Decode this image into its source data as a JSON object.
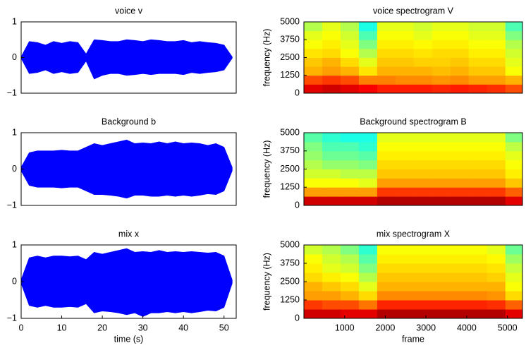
{
  "chart_data": [
    {
      "type": "waveform",
      "title": "voice v",
      "color": "#0000ff",
      "x": [
        0,
        2,
        4,
        6,
        8,
        10,
        12,
        14,
        16,
        18,
        20,
        22,
        24,
        26,
        28,
        30,
        32,
        34,
        36,
        38,
        40,
        42,
        44,
        46,
        48,
        50,
        52
      ],
      "upper": [
        0.02,
        0.45,
        0.42,
        0.35,
        0.45,
        0.4,
        0.45,
        0.42,
        0.1,
        0.5,
        0.48,
        0.45,
        0.45,
        0.5,
        0.48,
        0.45,
        0.5,
        0.48,
        0.45,
        0.45,
        0.48,
        0.42,
        0.45,
        0.42,
        0.4,
        0.35,
        0.02
      ],
      "lower": [
        -0.02,
        -0.45,
        -0.42,
        -0.35,
        -0.45,
        -0.4,
        -0.45,
        -0.42,
        -0.1,
        -0.6,
        -0.5,
        -0.45,
        -0.45,
        -0.5,
        -0.48,
        -0.45,
        -0.48,
        -0.45,
        -0.45,
        -0.45,
        -0.48,
        -0.42,
        -0.45,
        -0.42,
        -0.4,
        -0.35,
        -0.02
      ],
      "xlim": [
        0,
        53
      ],
      "ylim": [
        -1,
        1
      ],
      "yticks": [
        {
          "value": -1,
          "label": "−1"
        },
        0,
        1
      ]
    },
    {
      "type": "heatmap",
      "title": "voice spectrogram V",
      "ylabel": "frequency (Hz)",
      "colormap": "jet",
      "xbins": [
        0,
        450,
        900,
        1350,
        1800,
        2250,
        2700,
        3150,
        3600,
        4050,
        4500,
        4950,
        5370
      ],
      "ybins": [
        0,
        625,
        1250,
        1875,
        2500,
        3125,
        3750,
        4375,
        5000
      ],
      "values": [
        [
          0.9,
          0.92,
          0.9,
          0.88,
          0.85,
          0.85,
          0.85,
          0.84,
          0.85,
          0.84,
          0.83,
          0.8
        ],
        [
          0.8,
          0.82,
          0.8,
          0.75,
          0.75,
          0.74,
          0.74,
          0.73,
          0.74,
          0.72,
          0.72,
          0.7
        ],
        [
          0.7,
          0.72,
          0.7,
          0.65,
          0.7,
          0.7,
          0.7,
          0.69,
          0.7,
          0.68,
          0.68,
          0.62
        ],
        [
          0.68,
          0.7,
          0.66,
          0.6,
          0.68,
          0.68,
          0.67,
          0.67,
          0.68,
          0.66,
          0.66,
          0.6
        ],
        [
          0.65,
          0.66,
          0.62,
          0.55,
          0.66,
          0.66,
          0.65,
          0.66,
          0.66,
          0.64,
          0.64,
          0.58
        ],
        [
          0.62,
          0.64,
          0.6,
          0.5,
          0.64,
          0.64,
          0.63,
          0.64,
          0.64,
          0.62,
          0.62,
          0.55
        ],
        [
          0.6,
          0.62,
          0.58,
          0.45,
          0.62,
          0.62,
          0.6,
          0.62,
          0.62,
          0.6,
          0.6,
          0.5
        ],
        [
          0.55,
          0.6,
          0.55,
          0.4,
          0.6,
          0.6,
          0.58,
          0.6,
          0.6,
          0.58,
          0.58,
          0.45
        ]
      ],
      "xlim": [
        0,
        5370
      ],
      "ylim": [
        0,
        5000
      ],
      "yticks": [
        0,
        1250,
        2500,
        3750,
        5000
      ]
    },
    {
      "type": "waveform",
      "title": "Background b",
      "color": "#0000ff",
      "x": [
        0,
        2,
        4,
        6,
        8,
        10,
        12,
        14,
        16,
        18,
        20,
        22,
        24,
        26,
        28,
        30,
        32,
        34,
        36,
        38,
        40,
        42,
        44,
        46,
        48,
        50,
        52
      ],
      "upper": [
        0.05,
        0.45,
        0.5,
        0.5,
        0.5,
        0.52,
        0.5,
        0.5,
        0.6,
        0.7,
        0.65,
        0.7,
        0.75,
        0.8,
        0.7,
        0.72,
        0.7,
        0.75,
        0.7,
        0.75,
        0.7,
        0.72,
        0.7,
        0.65,
        0.7,
        0.6,
        0.05
      ],
      "lower": [
        -0.05,
        -0.45,
        -0.5,
        -0.5,
        -0.5,
        -0.52,
        -0.5,
        -0.5,
        -0.6,
        -0.7,
        -0.7,
        -0.72,
        -0.75,
        -0.8,
        -0.72,
        -0.72,
        -0.75,
        -0.75,
        -0.72,
        -0.75,
        -0.72,
        -0.75,
        -0.72,
        -0.68,
        -0.7,
        -0.6,
        -0.05
      ],
      "xlim": [
        0,
        53
      ],
      "ylim": [
        -1,
        1
      ],
      "yticks": [
        {
          "value": -1,
          "label": "−1"
        },
        0,
        1
      ]
    },
    {
      "type": "heatmap",
      "title": "Background spectrogram B",
      "ylabel": "frequency (Hz)",
      "colormap": "jet",
      "xbins": [
        0,
        450,
        900,
        1350,
        1800,
        2250,
        2700,
        3150,
        3600,
        4050,
        4500,
        4950,
        5370
      ],
      "ybins": [
        0,
        625,
        1250,
        1875,
        2500,
        3125,
        3750,
        4375,
        5000
      ],
      "values": [
        [
          0.92,
          0.92,
          0.92,
          0.92,
          0.95,
          0.95,
          0.95,
          0.95,
          0.95,
          0.95,
          0.95,
          0.9
        ],
        [
          0.72,
          0.72,
          0.72,
          0.72,
          0.82,
          0.82,
          0.82,
          0.82,
          0.82,
          0.82,
          0.82,
          0.78
        ],
        [
          0.62,
          0.62,
          0.62,
          0.6,
          0.72,
          0.72,
          0.72,
          0.72,
          0.72,
          0.72,
          0.72,
          0.68
        ],
        [
          0.58,
          0.58,
          0.56,
          0.56,
          0.68,
          0.68,
          0.68,
          0.68,
          0.68,
          0.68,
          0.68,
          0.64
        ],
        [
          0.55,
          0.52,
          0.52,
          0.5,
          0.66,
          0.66,
          0.66,
          0.66,
          0.66,
          0.66,
          0.66,
          0.62
        ],
        [
          0.52,
          0.48,
          0.48,
          0.46,
          0.64,
          0.64,
          0.64,
          0.64,
          0.64,
          0.64,
          0.64,
          0.6
        ],
        [
          0.5,
          0.45,
          0.45,
          0.42,
          0.62,
          0.62,
          0.62,
          0.62,
          0.62,
          0.62,
          0.62,
          0.56
        ],
        [
          0.46,
          0.42,
          0.4,
          0.4,
          0.6,
          0.6,
          0.6,
          0.6,
          0.6,
          0.6,
          0.6,
          0.5
        ]
      ],
      "xlim": [
        0,
        5370
      ],
      "ylim": [
        0,
        5000
      ],
      "yticks": [
        0,
        1250,
        2500,
        3750,
        5000
      ]
    },
    {
      "type": "waveform",
      "title": "mix x",
      "xlabel": "time (s)",
      "color": "#0000ff",
      "x": [
        0,
        2,
        4,
        6,
        8,
        10,
        12,
        14,
        16,
        18,
        20,
        22,
        24,
        26,
        28,
        30,
        32,
        34,
        36,
        38,
        40,
        42,
        44,
        46,
        48,
        50,
        52
      ],
      "upper": [
        0.05,
        0.65,
        0.7,
        0.65,
        0.7,
        0.7,
        0.68,
        0.7,
        0.6,
        0.8,
        0.75,
        0.8,
        0.85,
        0.9,
        0.8,
        0.82,
        0.8,
        0.85,
        0.8,
        0.82,
        0.8,
        0.82,
        0.8,
        0.78,
        0.8,
        0.7,
        0.05
      ],
      "lower": [
        -0.05,
        -0.65,
        -0.7,
        -0.65,
        -0.7,
        -0.7,
        -0.68,
        -0.7,
        -0.6,
        -0.85,
        -0.8,
        -0.82,
        -0.85,
        -0.9,
        -0.85,
        -0.95,
        -0.85,
        -0.85,
        -0.82,
        -0.85,
        -0.82,
        -0.85,
        -0.82,
        -0.78,
        -0.8,
        -0.7,
        -0.05
      ],
      "xlim": [
        0,
        53
      ],
      "ylim": [
        -1,
        1
      ],
      "xticks": [
        0,
        10,
        20,
        30,
        40,
        50
      ],
      "yticks": [
        {
          "value": -1,
          "label": "−1"
        },
        0,
        1
      ]
    },
    {
      "type": "heatmap",
      "title": "mix spectrogram X",
      "ylabel": "frequency (Hz)",
      "xlabel": "frame",
      "colormap": "jet",
      "xbins": [
        0,
        450,
        900,
        1350,
        1800,
        2250,
        2700,
        3150,
        3600,
        4050,
        4500,
        4950,
        5370
      ],
      "ybins": [
        0,
        625,
        1250,
        1875,
        2500,
        3125,
        3750,
        4375,
        5000
      ],
      "values": [
        [
          0.92,
          0.92,
          0.9,
          0.9,
          0.95,
          0.95,
          0.95,
          0.95,
          0.95,
          0.95,
          0.95,
          0.9
        ],
        [
          0.82,
          0.8,
          0.8,
          0.76,
          0.84,
          0.84,
          0.84,
          0.84,
          0.84,
          0.84,
          0.83,
          0.78
        ],
        [
          0.72,
          0.72,
          0.7,
          0.66,
          0.74,
          0.74,
          0.74,
          0.74,
          0.74,
          0.74,
          0.73,
          0.66
        ],
        [
          0.7,
          0.68,
          0.66,
          0.6,
          0.7,
          0.7,
          0.7,
          0.7,
          0.7,
          0.7,
          0.7,
          0.62
        ],
        [
          0.66,
          0.64,
          0.62,
          0.55,
          0.68,
          0.68,
          0.68,
          0.68,
          0.68,
          0.68,
          0.67,
          0.6
        ],
        [
          0.64,
          0.6,
          0.58,
          0.5,
          0.66,
          0.66,
          0.66,
          0.66,
          0.66,
          0.66,
          0.65,
          0.57
        ],
        [
          0.62,
          0.58,
          0.55,
          0.46,
          0.64,
          0.64,
          0.64,
          0.64,
          0.64,
          0.64,
          0.63,
          0.53
        ],
        [
          0.58,
          0.55,
          0.5,
          0.42,
          0.62,
          0.62,
          0.62,
          0.62,
          0.62,
          0.62,
          0.6,
          0.48
        ]
      ],
      "xlim": [
        0,
        5370
      ],
      "ylim": [
        0,
        5000
      ],
      "xticks": [
        1000,
        2000,
        3000,
        4000,
        5000
      ],
      "yticks": [
        0,
        1250,
        2500,
        3750,
        5000
      ]
    }
  ]
}
